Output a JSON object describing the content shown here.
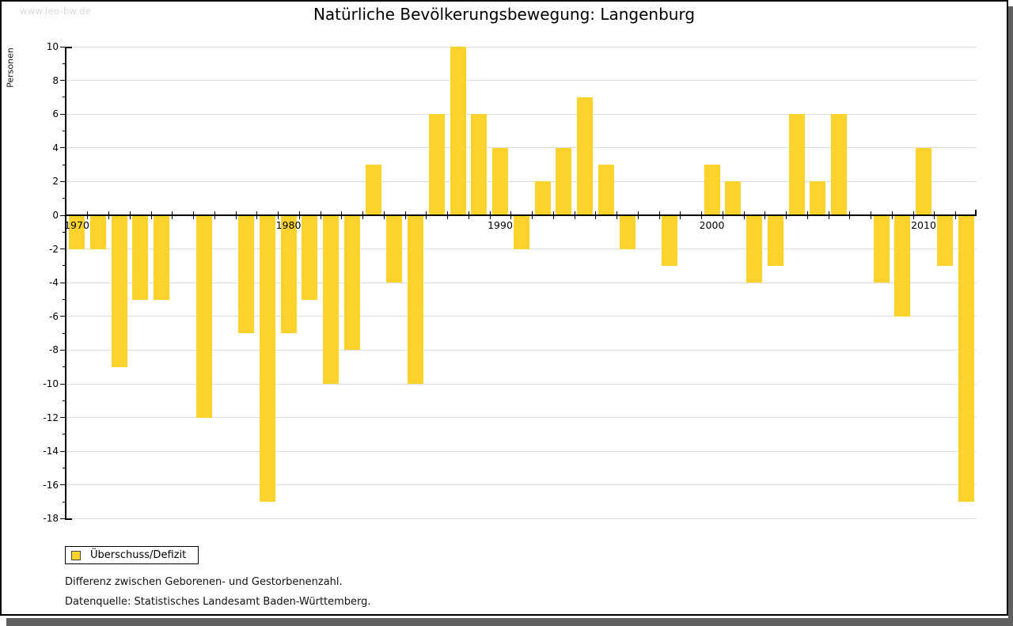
{
  "window": {
    "watermark": "www.leo-bw.de",
    "title": "Natürliche Bevölkerungsbewegung: Langenburg"
  },
  "chart_data": {
    "type": "bar",
    "title": "Natürliche Bevölkerungsbewegung: Langenburg",
    "xlabel": "",
    "ylabel": "Personen",
    "series_name": "Überschuss/Defizit",
    "x": [
      1970,
      1971,
      1972,
      1973,
      1974,
      1975,
      1976,
      1977,
      1978,
      1979,
      1980,
      1981,
      1982,
      1983,
      1984,
      1985,
      1986,
      1987,
      1988,
      1989,
      1990,
      1991,
      1992,
      1993,
      1994,
      1995,
      1996,
      1997,
      1998,
      1999,
      2000,
      2001,
      2002,
      2003,
      2004,
      2005,
      2006,
      2007,
      2008,
      2009,
      2010,
      2011,
      2012
    ],
    "values": [
      -2,
      -2,
      -9,
      -5,
      -5,
      0,
      -12,
      0,
      -7,
      -17,
      -7,
      -5,
      -10,
      -8,
      3,
      -4,
      -10,
      6,
      10,
      6,
      4,
      -2,
      2,
      4,
      7,
      3,
      -2,
      0,
      -3,
      0,
      3,
      2,
      -4,
      -3,
      6,
      2,
      6,
      0,
      -4,
      -6,
      4,
      -3,
      -17
    ],
    "ylim": [
      -18,
      10
    ],
    "ytick_step": 2,
    "xtick_labels": [
      "1970",
      "1980",
      "1990",
      "2000",
      "2010"
    ],
    "bar_color": "#FCD32C",
    "grid": true,
    "legend_position": "bottom-left"
  },
  "legend": {
    "label": "Überschuss/Defizit",
    "swatch_color": "#FCD32C"
  },
  "footnotes": {
    "description": "Differenz zwischen Geborenen- und Gestorbenenzahl.",
    "source": "Datenquelle: Statistisches Landesamt Baden-Württemberg."
  }
}
